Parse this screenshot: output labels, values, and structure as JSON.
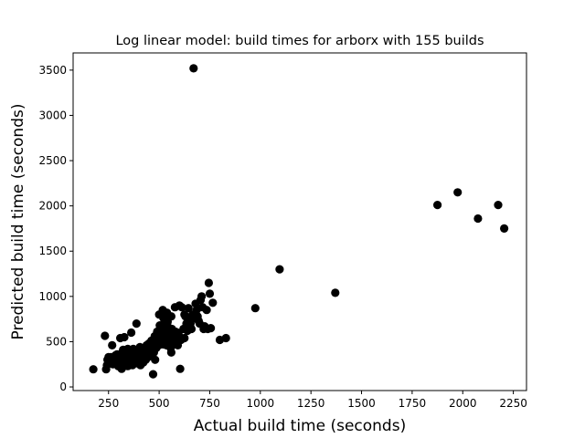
{
  "chart_data": {
    "type": "scatter",
    "title": "Log linear model: build times for arborx with 155 builds",
    "xlabel": "Actual build time (seconds)",
    "ylabel": "Predicted build time (seconds)",
    "xlim": [
      75,
      2315
    ],
    "ylim": [
      -40,
      3690
    ],
    "xticks": [
      250,
      500,
      750,
      1000,
      1250,
      1500,
      1750,
      2000,
      2250
    ],
    "yticks": [
      0,
      500,
      1000,
      1500,
      2000,
      2500,
      3000,
      3500
    ],
    "grid": false,
    "legend": "none",
    "marker_color": "#000000",
    "points": [
      [
        175,
        195
      ],
      [
        232,
        565
      ],
      [
        238,
        195
      ],
      [
        242,
        240
      ],
      [
        245,
        300
      ],
      [
        250,
        330
      ],
      [
        255,
        280
      ],
      [
        262,
        330
      ],
      [
        268,
        460
      ],
      [
        272,
        250
      ],
      [
        278,
        330
      ],
      [
        282,
        300
      ],
      [
        288,
        270
      ],
      [
        292,
        360
      ],
      [
        298,
        230
      ],
      [
        302,
        320
      ],
      [
        305,
        280
      ],
      [
        308,
        540
      ],
      [
        312,
        350
      ],
      [
        315,
        200
      ],
      [
        318,
        380
      ],
      [
        322,
        410
      ],
      [
        325,
        330
      ],
      [
        328,
        550
      ],
      [
        332,
        300
      ],
      [
        335,
        250
      ],
      [
        338,
        280
      ],
      [
        342,
        360
      ],
      [
        345,
        230
      ],
      [
        348,
        320
      ],
      [
        352,
        400
      ],
      [
        355,
        350
      ],
      [
        358,
        270
      ],
      [
        362,
        600
      ],
      [
        365,
        300
      ],
      [
        368,
        240
      ],
      [
        372,
        420
      ],
      [
        375,
        380
      ],
      [
        378,
        330
      ],
      [
        382,
        290
      ],
      [
        388,
        700
      ],
      [
        392,
        260
      ],
      [
        395,
        410
      ],
      [
        398,
        360
      ],
      [
        402,
        310
      ],
      [
        405,
        440
      ],
      [
        408,
        240
      ],
      [
        412,
        330
      ],
      [
        415,
        380
      ],
      [
        418,
        300
      ],
      [
        422,
        270
      ],
      [
        426,
        420
      ],
      [
        430,
        350
      ],
      [
        434,
        300
      ],
      [
        438,
        460
      ],
      [
        442,
        390
      ],
      [
        446,
        330
      ],
      [
        450,
        480
      ],
      [
        454,
        400
      ],
      [
        458,
        360
      ],
      [
        462,
        510
      ],
      [
        466,
        440
      ],
      [
        470,
        140
      ],
      [
        474,
        380
      ],
      [
        478,
        560
      ],
      [
        482,
        490
      ],
      [
        486,
        430
      ],
      [
        490,
        610
      ],
      [
        494,
        520
      ],
      [
        498,
        460
      ],
      [
        500,
        800
      ],
      [
        503,
        680
      ],
      [
        506,
        600
      ],
      [
        509,
        540
      ],
      [
        512,
        490
      ],
      [
        515,
        650
      ],
      [
        518,
        850
      ],
      [
        521,
        760
      ],
      [
        524,
        700
      ],
      [
        527,
        620
      ],
      [
        530,
        560
      ],
      [
        533,
        500
      ],
      [
        536,
        460
      ],
      [
        539,
        820
      ],
      [
        542,
        720
      ],
      [
        545,
        660
      ],
      [
        548,
        590
      ],
      [
        551,
        530
      ],
      [
        554,
        470
      ],
      [
        557,
        430
      ],
      [
        560,
        380
      ],
      [
        563,
        640
      ],
      [
        566,
        580
      ],
      [
        569,
        520
      ],
      [
        572,
        470
      ],
      [
        575,
        550
      ],
      [
        578,
        880
      ],
      [
        581,
        610
      ],
      [
        584,
        500
      ],
      [
        588,
        540
      ],
      [
        592,
        460
      ],
      [
        596,
        580
      ],
      [
        600,
        900
      ],
      [
        604,
        200
      ],
      [
        608,
        520
      ],
      [
        612,
        880
      ],
      [
        620,
        640
      ],
      [
        625,
        540
      ],
      [
        630,
        780
      ],
      [
        635,
        700
      ],
      [
        640,
        620
      ],
      [
        645,
        870
      ],
      [
        650,
        750
      ],
      [
        655,
        700
      ],
      [
        660,
        640
      ],
      [
        665,
        800
      ],
      [
        670,
        3520
      ],
      [
        675,
        760
      ],
      [
        680,
        920
      ],
      [
        685,
        850
      ],
      [
        690,
        780
      ],
      [
        695,
        730
      ],
      [
        700,
        700
      ],
      [
        705,
        960
      ],
      [
        710,
        1000
      ],
      [
        715,
        880
      ],
      [
        720,
        640
      ],
      [
        725,
        670
      ],
      [
        735,
        850
      ],
      [
        740,
        640
      ],
      [
        745,
        1150
      ],
      [
        750,
        1030
      ],
      [
        755,
        650
      ],
      [
        765,
        930
      ],
      [
        800,
        520
      ],
      [
        830,
        540
      ],
      [
        975,
        870
      ],
      [
        1095,
        1300
      ],
      [
        1370,
        1040
      ],
      [
        1875,
        2010
      ],
      [
        1975,
        2150
      ],
      [
        2075,
        1860
      ],
      [
        2175,
        2010
      ],
      [
        2205,
        1750
      ],
      [
        560,
        780
      ],
      [
        440,
        350
      ],
      [
        300,
        230
      ],
      [
        520,
        470
      ],
      [
        590,
        600
      ],
      [
        345,
        420
      ],
      [
        480,
        300
      ],
      [
        410,
        250
      ],
      [
        365,
        320
      ],
      [
        285,
        350
      ],
      [
        625,
        800
      ]
    ]
  }
}
